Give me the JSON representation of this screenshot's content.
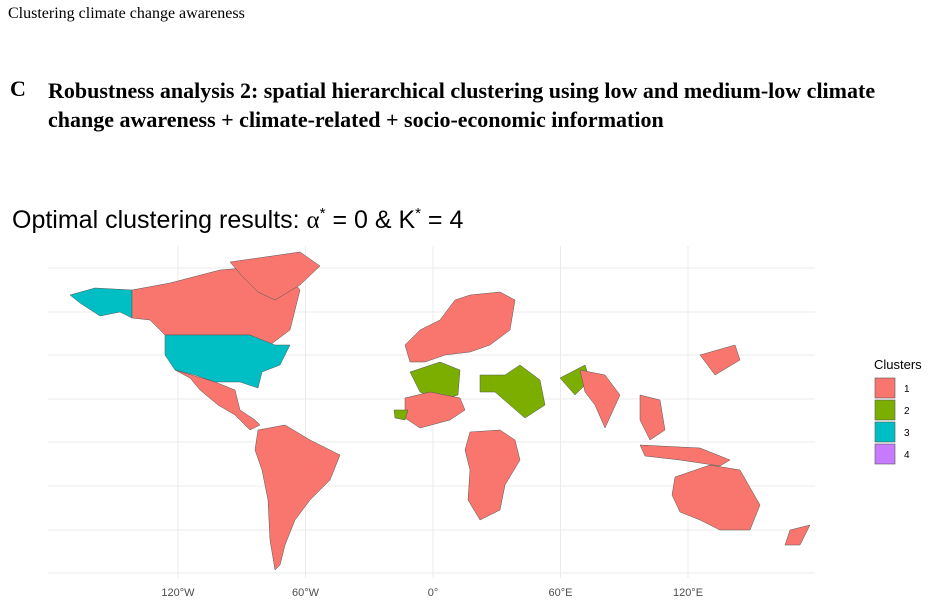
{
  "header": {
    "title": "Clustering climate change awareness"
  },
  "panel": {
    "label": "C",
    "heading_lines": [
      "Robustness analysis 2: spatial hierarchical clustering using low and medium-low climate",
      "change awareness + climate-related + socio-economic information"
    ]
  },
  "plot": {
    "title_parts": [
      "Optimal clustering results: ",
      "α",
      "*",
      " = 0 & K",
      "*",
      " = 4"
    ],
    "xlim": [
      -180,
      180
    ],
    "xticks": [
      {
        "value": -120,
        "label": "120°W"
      },
      {
        "value": -60,
        "label": "60°W"
      },
      {
        "value": 0,
        "label": "0°"
      },
      {
        "value": 60,
        "label": "60°E"
      },
      {
        "value": 120,
        "label": "120°E"
      }
    ],
    "legend": {
      "title": "Clusters",
      "items": [
        {
          "label": "1",
          "color": "#f8766d"
        },
        {
          "label": "2",
          "color": "#7cae00"
        },
        {
          "label": "3",
          "color": "#00bfc4"
        },
        {
          "label": "4",
          "color": "#c77cff"
        }
      ]
    }
  }
}
